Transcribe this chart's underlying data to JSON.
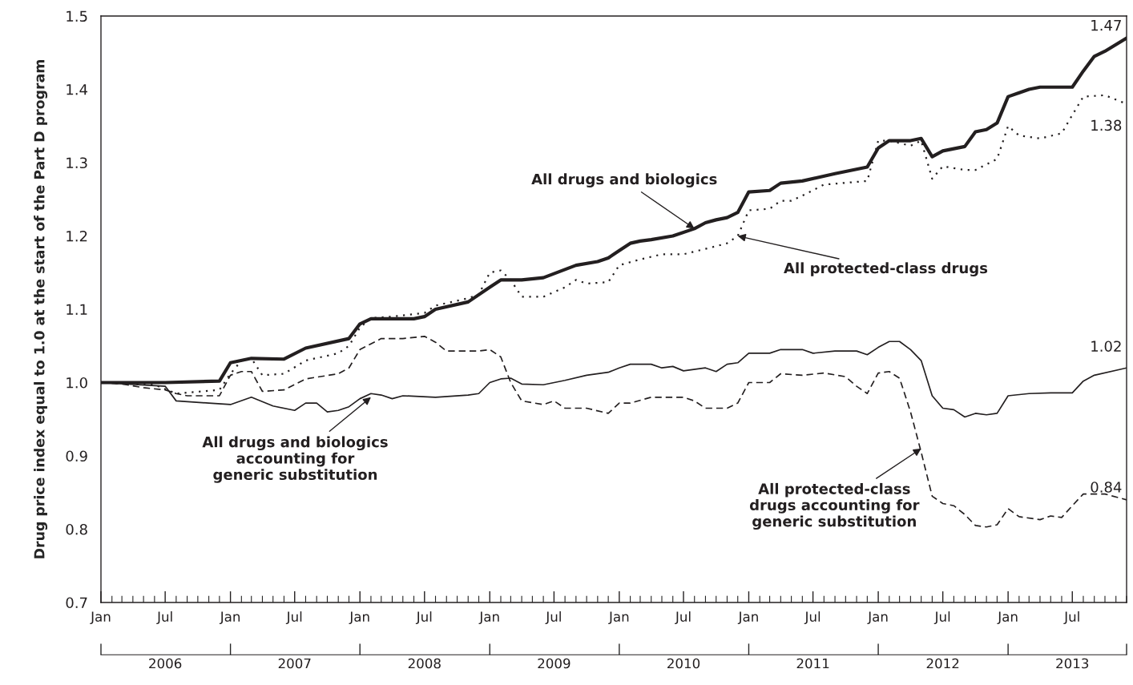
{
  "chart_data": {
    "type": "line",
    "ylabel": "Drug price index equal to 1.0 at the start of the Part D program",
    "xlim": [
      "2006-01",
      "2013-12"
    ],
    "ylim": [
      0.7,
      1.5
    ],
    "yticks": [
      0.7,
      0.8,
      0.9,
      {
        "value": 1.0,
        "label": "1.0"
      },
      1.1,
      1.2,
      1.3,
      1.4,
      1.5
    ],
    "xticks": [
      {
        "value": "2006-01",
        "label": "Jan"
      },
      {
        "value": "2006-07",
        "label": "Jul"
      },
      {
        "value": "2007-01",
        "label": "Jan"
      },
      {
        "value": "2007-07",
        "label": "Jul"
      },
      {
        "value": "2008-01",
        "label": "Jan"
      },
      {
        "value": "2008-07",
        "label": "Jul"
      },
      {
        "value": "2009-01",
        "label": "Jan"
      },
      {
        "value": "2009-07",
        "label": "Jul"
      },
      {
        "value": "2010-01",
        "label": "Jan"
      },
      {
        "value": "2010-07",
        "label": "Jul"
      },
      {
        "value": "2011-01",
        "label": "Jan"
      },
      {
        "value": "2011-07",
        "label": "Jul"
      },
      {
        "value": "2012-01",
        "label": "Jan"
      },
      {
        "value": "2012-07",
        "label": "Jul"
      },
      {
        "value": "2013-01",
        "label": "Jan"
      },
      {
        "value": "2013-07",
        "label": "Jul"
      }
    ],
    "x2lim": [
      "2006-01",
      "2013-12"
    ],
    "x2ticks": [
      {
        "value": "2006-01",
        "label": null
      },
      {
        "value": "2007-01",
        "label": null
      },
      {
        "value": "2008-01",
        "label": null
      },
      {
        "value": "2009-01",
        "label": null
      },
      {
        "value": "2010-01",
        "label": null
      },
      {
        "value": "2011-01",
        "label": null
      },
      {
        "value": "2012-01",
        "label": null
      },
      {
        "value": "2013-01",
        "label": null
      },
      {
        "value": "2013-12",
        "label": null
      },
      {
        "value": "2006-07",
        "label": "2006"
      },
      {
        "value": "2007-07",
        "label": "2007"
      },
      {
        "value": "2008-07",
        "label": "2008"
      },
      {
        "value": "2009-07",
        "label": "2009"
      },
      {
        "value": "2010-07",
        "label": "2010"
      },
      {
        "value": "2011-07",
        "label": "2011"
      },
      {
        "value": "2012-07",
        "label": "2012"
      },
      {
        "value": "2013-07",
        "label": "2013"
      }
    ],
    "grid": false,
    "series": [
      {
        "color": "#231f20",
        "line_style": "solid",
        "x": [
          "2006-01",
          "2006-07",
          "2006-12",
          "2007-01",
          "2007-03",
          "2007-06",
          "2007-08",
          "2007-12",
          "2008-01",
          "2008-02",
          "2008-06",
          "2008-07",
          "2008-08",
          "2008-11",
          "2009-01",
          "2009-02",
          "2009-04",
          "2009-06",
          "2009-09",
          "2009-11",
          "2009-12",
          "2010-01",
          "2010-02",
          "2010-03",
          "2010-04",
          "2010-06",
          "2010-08",
          "2010-09",
          "2010-10",
          "2010-11",
          "2010-12",
          "2011-01",
          "2011-03",
          "2011-04",
          "2011-06",
          "2011-09",
          "2011-12",
          "2012-01",
          "2012-02",
          "2012-04",
          "2012-05",
          "2012-06",
          "2012-07",
          "2012-09",
          "2012-10",
          "2012-11",
          "2012-12",
          "2013-01",
          "2013-03",
          "2013-04",
          "2013-07",
          "2013-08",
          "2013-09",
          "2013-10",
          "2013-12"
        ],
        "values": [
          1.0,
          1.0,
          1.002,
          1.027,
          1.033,
          1.032,
          1.047,
          1.06,
          1.08,
          1.087,
          1.087,
          1.09,
          1.1,
          1.11,
          1.13,
          1.14,
          1.14,
          1.143,
          1.16,
          1.165,
          1.17,
          1.18,
          1.19,
          1.193,
          1.195,
          1.2,
          1.21,
          1.218,
          1.222,
          1.225,
          1.232,
          1.26,
          1.262,
          1.272,
          1.275,
          1.285,
          1.294,
          1.32,
          1.33,
          1.33,
          1.333,
          1.308,
          1.316,
          1.322,
          1.342,
          1.345,
          1.354,
          1.39,
          1.4,
          1.403,
          1.403,
          1.425,
          1.445,
          1.452,
          1.47
        ]
      },
      {
        "color": "#231f20",
        "line_style": "dotted",
        "x": [
          "2006-01",
          "2006-06",
          "2006-08",
          "2006-12",
          "2007-01",
          "2007-02",
          "2007-03",
          "2007-04",
          "2007-06",
          "2007-08",
          "2007-11",
          "2007-12",
          "2008-01",
          "2008-02",
          "2008-04",
          "2008-07",
          "2008-08",
          "2008-11",
          "2008-12",
          "2009-01",
          "2009-02",
          "2009-03",
          "2009-04",
          "2009-06",
          "2009-08",
          "2009-09",
          "2009-10",
          "2009-12",
          "2010-01",
          "2010-03",
          "2010-05",
          "2010-07",
          "2010-10",
          "2010-11",
          "2010-12",
          "2011-01",
          "2011-03",
          "2011-04",
          "2011-05",
          "2011-06",
          "2011-08",
          "2011-12",
          "2012-01",
          "2012-02",
          "2012-04",
          "2012-05",
          "2012-06",
          "2012-07",
          "2012-09",
          "2012-10",
          "2012-12",
          "2013-01",
          "2013-02",
          "2013-04",
          "2013-06",
          "2013-07",
          "2013-08",
          "2013-10",
          "2013-12"
        ],
        "values": [
          1.0,
          0.997,
          0.985,
          0.99,
          1.012,
          1.03,
          1.033,
          1.01,
          1.012,
          1.03,
          1.04,
          1.05,
          1.075,
          1.088,
          1.09,
          1.095,
          1.105,
          1.115,
          1.12,
          1.15,
          1.153,
          1.14,
          1.117,
          1.117,
          1.13,
          1.14,
          1.135,
          1.137,
          1.16,
          1.168,
          1.175,
          1.175,
          1.186,
          1.19,
          1.2,
          1.235,
          1.237,
          1.248,
          1.248,
          1.255,
          1.27,
          1.275,
          1.33,
          1.33,
          1.323,
          1.33,
          1.278,
          1.295,
          1.29,
          1.29,
          1.305,
          1.35,
          1.337,
          1.333,
          1.34,
          1.365,
          1.39,
          1.392,
          1.38
        ]
      },
      {
        "color": "#231f20",
        "line_style": "solid",
        "x": [
          "2006-01",
          "2006-07",
          "2006-08",
          "2006-11",
          "2007-01",
          "2007-03",
          "2007-05",
          "2007-07",
          "2007-08",
          "2007-09",
          "2007-10",
          "2007-11",
          "2007-12",
          "2008-01",
          "2008-02",
          "2008-03",
          "2008-04",
          "2008-05",
          "2008-08",
          "2008-11",
          "2008-12",
          "2009-01",
          "2009-02",
          "2009-03",
          "2009-04",
          "2009-06",
          "2009-08",
          "2009-10",
          "2009-12",
          "2010-01",
          "2010-02",
          "2010-04",
          "2010-05",
          "2010-06",
          "2010-07",
          "2010-09",
          "2010-10",
          "2010-11",
          "2010-12",
          "2011-01",
          "2011-03",
          "2011-04",
          "2011-06",
          "2011-07",
          "2011-09",
          "2011-11",
          "2011-12",
          "2012-01",
          "2012-02",
          "2012-03",
          "2012-04",
          "2012-05",
          "2012-06",
          "2012-07",
          "2012-08",
          "2012-09",
          "2012-10",
          "2012-11",
          "2012-12",
          "2013-01",
          "2013-03",
          "2013-05",
          "2013-07",
          "2013-08",
          "2013-09",
          "2013-12"
        ],
        "values": [
          1.0,
          0.995,
          0.975,
          0.972,
          0.97,
          0.98,
          0.968,
          0.962,
          0.972,
          0.972,
          0.96,
          0.962,
          0.967,
          0.978,
          0.985,
          0.983,
          0.978,
          0.982,
          0.98,
          0.983,
          0.985,
          1.0,
          1.005,
          1.006,
          0.998,
          0.997,
          1.003,
          1.01,
          1.014,
          1.02,
          1.025,
          1.025,
          1.02,
          1.022,
          1.016,
          1.02,
          1.015,
          1.025,
          1.027,
          1.04,
          1.04,
          1.045,
          1.045,
          1.04,
          1.043,
          1.043,
          1.038,
          1.048,
          1.056,
          1.056,
          1.045,
          1.03,
          0.982,
          0.965,
          0.963,
          0.953,
          0.958,
          0.956,
          0.958,
          0.982,
          0.985,
          0.986,
          0.986,
          1.002,
          1.01,
          1.02
        ]
      },
      {
        "color": "#231f20",
        "line_style": "dashed",
        "x": [
          "2006-01",
          "2006-03",
          "2006-05",
          "2006-07",
          "2006-08",
          "2006-09",
          "2006-12",
          "2007-01",
          "2007-02",
          "2007-03",
          "2007-04",
          "2007-06",
          "2007-08",
          "2007-11",
          "2007-12",
          "2008-01",
          "2008-03",
          "2008-05",
          "2008-07",
          "2008-08",
          "2008-09",
          "2008-12",
          "2009-01",
          "2009-02",
          "2009-03",
          "2009-04",
          "2009-06",
          "2009-07",
          "2009-08",
          "2009-10",
          "2009-12",
          "2010-01",
          "2010-02",
          "2010-04",
          "2010-07",
          "2010-08",
          "2010-09",
          "2010-11",
          "2010-12",
          "2011-01",
          "2011-03",
          "2011-04",
          "2011-06",
          "2011-08",
          "2011-10",
          "2011-11",
          "2011-12",
          "2012-01",
          "2012-02",
          "2012-03",
          "2012-04",
          "2012-05",
          "2012-06",
          "2012-07",
          "2012-08",
          "2012-09",
          "2012-10",
          "2012-11",
          "2012-12",
          "2013-01",
          "2013-02",
          "2013-04",
          "2013-05",
          "2013-06",
          "2013-07",
          "2013-08",
          "2013-10",
          "2013-12"
        ],
        "values": [
          1.0,
          0.998,
          0.993,
          0.99,
          0.985,
          0.982,
          0.982,
          1.01,
          1.015,
          1.015,
          0.988,
          0.99,
          1.005,
          1.012,
          1.02,
          1.045,
          1.06,
          1.06,
          1.063,
          1.055,
          1.043,
          1.043,
          1.045,
          1.035,
          1.0,
          0.975,
          0.97,
          0.975,
          0.965,
          0.965,
          0.958,
          0.972,
          0.972,
          0.98,
          0.98,
          0.975,
          0.965,
          0.965,
          0.972,
          1.0,
          1.0,
          1.012,
          1.01,
          1.013,
          1.008,
          0.995,
          0.985,
          1.013,
          1.015,
          1.006,
          0.96,
          0.905,
          0.845,
          0.835,
          0.832,
          0.82,
          0.805,
          0.803,
          0.806,
          0.828,
          0.817,
          0.813,
          0.818,
          0.816,
          0.832,
          0.848,
          0.848,
          0.84
        ]
      }
    ],
    "annotations": [
      {
        "text": "All drugs and biologics",
        "x": "2010-08",
        "y": 1.21
      },
      {
        "text": "All protected-class drugs",
        "x": "2010-12",
        "y": 1.2
      },
      {
        "text": "All drugs and biologics\naccounting for\ngeneric substitution",
        "x": "2008-02",
        "y": 0.98
      },
      {
        "text": "All protected-class\ndrugs accounting for\ngeneric substitution",
        "x": "2012-05",
        "y": 0.91
      },
      {
        "text": "1.47",
        "x": "2013-12",
        "y": 1.47
      },
      {
        "text": "1.38",
        "x": "2013-12",
        "y": 1.38
      },
      {
        "text": "1.02",
        "x": "2013-12",
        "y": 1.02
      },
      {
        "text": "0.84",
        "x": "2013-12",
        "y": 0.84
      }
    ]
  }
}
